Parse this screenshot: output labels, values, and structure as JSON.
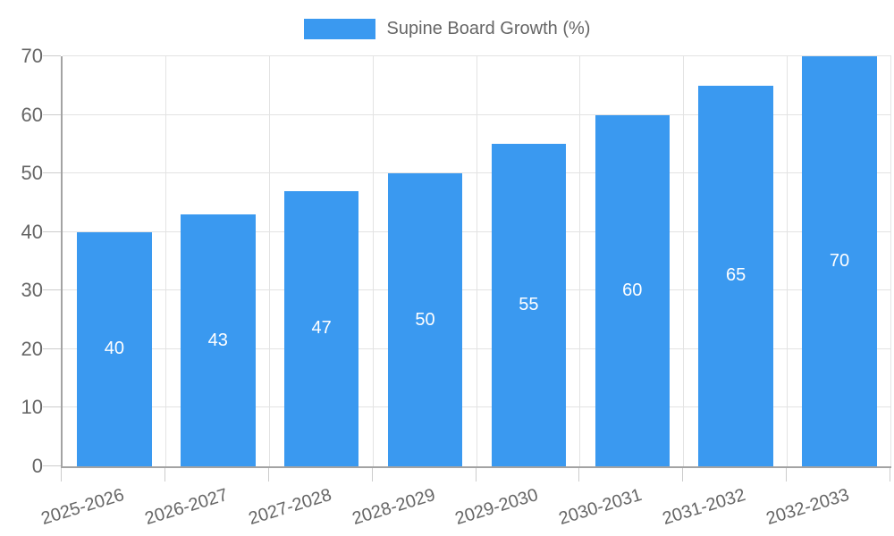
{
  "chart_data": {
    "type": "bar",
    "title": "",
    "legend": "Supine Board Growth (%)",
    "legend_position": "top-center",
    "categories": [
      "2025-2026",
      "2026-2027",
      "2027-2028",
      "2028-2029",
      "2029-2030",
      "2030-2031",
      "2031-2032",
      "2032-2033"
    ],
    "values": [
      40,
      43,
      47,
      50,
      55,
      60,
      65,
      70
    ],
    "xlabel": "",
    "ylabel": "",
    "ylim": [
      0,
      70
    ],
    "yticks": [
      0,
      10,
      20,
      30,
      40,
      50,
      60,
      70
    ],
    "grid": "on",
    "bar_color": "#3A99F0",
    "bar_label_color": "#ffffff",
    "text_color": "#666666",
    "grid_color": "#e3e3e3",
    "tick_color": "#cccccc",
    "axis_color": "#a3a3a3"
  }
}
